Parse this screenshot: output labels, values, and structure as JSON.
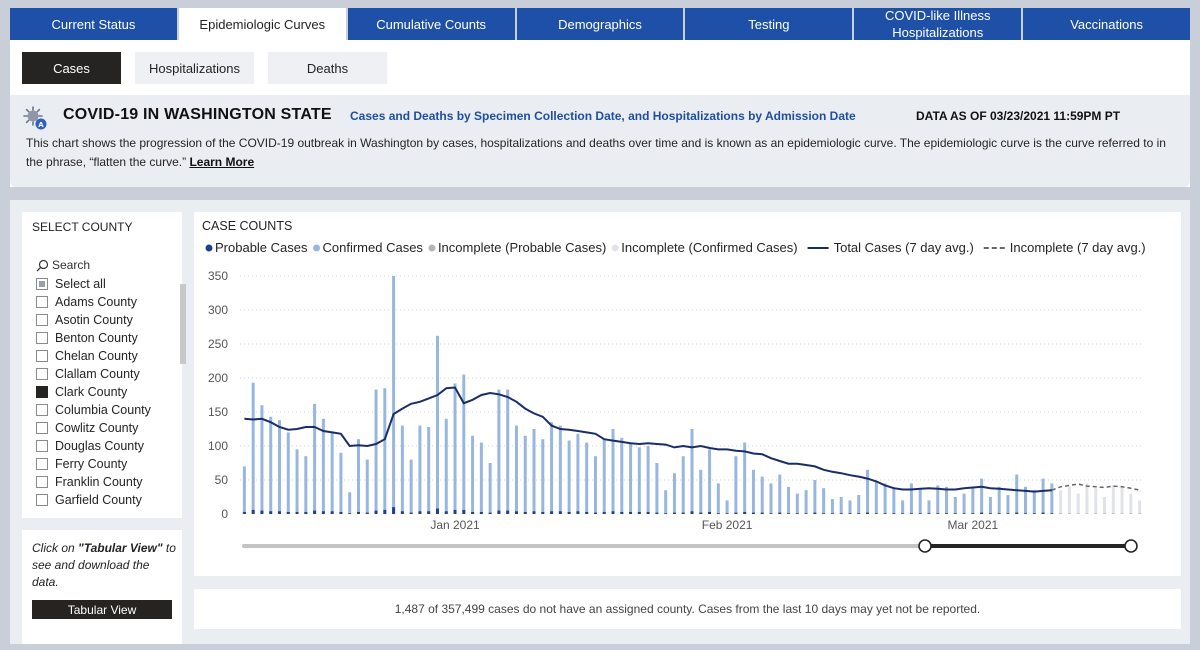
{
  "nav": {
    "tabs": [
      {
        "label": "Current Status",
        "active": false
      },
      {
        "label": "Epidemiologic Curves",
        "active": true
      },
      {
        "label": "Cumulative Counts",
        "active": false
      },
      {
        "label": "Demographics",
        "active": false
      },
      {
        "label": "Testing",
        "active": false
      },
      {
        "label": "COVID-like Illness Hospitalizations",
        "active": false
      },
      {
        "label": "Vaccinations",
        "active": false
      }
    ]
  },
  "subtabs": [
    {
      "label": "Cases",
      "active": true
    },
    {
      "label": "Hospitalizations",
      "active": false
    },
    {
      "label": "Deaths",
      "active": false
    }
  ],
  "header": {
    "icon": "virus-icon",
    "title": "COVID-19 IN WASHINGTON STATE",
    "subtitle": "Cases and Deaths by Specimen Collection Date, and Hospitalizations by Admission Date",
    "data_as_of": "DATA AS OF 03/23/2021 11:59PM PT",
    "description": "This chart shows the progression of the COVID-19 outbreak in Washington by cases, hospitalizations and deaths over time and is known as an epidemiologic curve. The epidemiologic curve is the curve referred to in the phrase, “flatten the curve.”",
    "learn_more": "Learn More"
  },
  "county_filter": {
    "title": "SELECT COUNTY",
    "search_placeholder": "Search",
    "items": [
      {
        "label": "Select all",
        "state": "partial"
      },
      {
        "label": "Adams County",
        "state": "unchecked"
      },
      {
        "label": "Asotin County",
        "state": "unchecked"
      },
      {
        "label": "Benton County",
        "state": "unchecked"
      },
      {
        "label": "Chelan County",
        "state": "unchecked"
      },
      {
        "label": "Clallam County",
        "state": "unchecked"
      },
      {
        "label": "Clark County",
        "state": "checked"
      },
      {
        "label": "Columbia County",
        "state": "unchecked"
      },
      {
        "label": "Cowlitz County",
        "state": "unchecked"
      },
      {
        "label": "Douglas County",
        "state": "unchecked"
      },
      {
        "label": "Ferry County",
        "state": "unchecked"
      },
      {
        "label": "Franklin County",
        "state": "unchecked"
      },
      {
        "label": "Garfield County",
        "state": "unchecked"
      }
    ]
  },
  "tabular": {
    "hint_prefix": "Click on ",
    "hint_bold": "\"Tabular View\"",
    "hint_suffix": " to see and download the data.",
    "button_label": "Tabular View"
  },
  "footer_note": "1,487 of 357,499 cases do not have an assigned county. Cases from the last 10 days may yet not be reported.",
  "colors": {
    "probable": "#1f3f8f",
    "confirmed": "#97b6e0",
    "incomplete_probable": "#b5b5b5",
    "incomplete_confirmed": "#e0e3e8",
    "total_line": "#1a2d66",
    "incomplete_line": "#666666"
  },
  "chart_data": {
    "type": "bar",
    "title": "CASE COUNTS",
    "ylim": [
      0,
      350
    ],
    "yticks": [
      0,
      50,
      100,
      150,
      200,
      250,
      300,
      350
    ],
    "x_tick_labels": [
      {
        "label": "Jan 2021",
        "day_index": 24
      },
      {
        "label": "Feb 2021",
        "day_index": 55
      },
      {
        "label": "Mar 2021",
        "day_index": 83
      }
    ],
    "legend": [
      {
        "label": "Probable Cases",
        "kind": "dot",
        "color": "#1f3f8f"
      },
      {
        "label": "Confirmed Cases",
        "kind": "dot",
        "color": "#97b6e0"
      },
      {
        "label": "Incomplete (Probable Cases)",
        "kind": "dot",
        "color": "#b5b5b5"
      },
      {
        "label": "Incomplete (Confirmed Cases)",
        "kind": "dot",
        "color": "#e0e3e8"
      },
      {
        "label": "Total Cases (7 day avg.)",
        "kind": "line",
        "color": "#1a2d66"
      },
      {
        "label": "Incomplete (7 day avg.)",
        "kind": "dash",
        "color": "#666666"
      }
    ],
    "confirmed_daily": [
      70,
      193,
      160,
      143,
      138,
      120,
      95,
      85,
      162,
      140,
      120,
      90,
      32,
      110,
      80,
      183,
      185,
      350,
      130,
      80,
      130,
      128,
      262,
      140,
      192,
      205,
      115,
      105,
      75,
      183,
      183,
      130,
      115,
      125,
      110,
      135,
      130,
      108,
      118,
      105,
      85,
      110,
      125,
      112,
      105,
      98,
      100,
      75,
      35,
      60,
      85,
      125,
      65,
      95,
      45,
      20,
      85,
      105,
      65,
      55,
      45,
      58,
      40,
      30,
      35,
      50,
      38,
      22,
      25,
      20,
      28,
      65,
      48,
      45,
      38,
      20,
      45,
      38,
      20,
      42,
      40,
      25,
      30,
      38,
      52,
      25,
      40,
      28,
      58,
      40,
      35,
      52,
      45
    ],
    "probable_daily": [
      3,
      6,
      5,
      4,
      4,
      3,
      3,
      3,
      5,
      4,
      4,
      3,
      1,
      3,
      2,
      5,
      6,
      10,
      4,
      2,
      4,
      4,
      8,
      4,
      6,
      6,
      3,
      3,
      2,
      5,
      5,
      4,
      3,
      4,
      3,
      4,
      4,
      3,
      4,
      3,
      2,
      3,
      4,
      3,
      3,
      3,
      3,
      2,
      1,
      2,
      2,
      4,
      2,
      3,
      1,
      1,
      2,
      3,
      2,
      2,
      1,
      2,
      1,
      1,
      1,
      2,
      1,
      1,
      1,
      1,
      1,
      2,
      1,
      1,
      1,
      1,
      1,
      1,
      1,
      1,
      1,
      1,
      1,
      1,
      2,
      1,
      1,
      1,
      2,
      1,
      1,
      2,
      1
    ],
    "incomplete_confirmed_daily": [
      35,
      40,
      30,
      45,
      38,
      25,
      42,
      40,
      30,
      20
    ],
    "incomplete_probable_daily": [
      1,
      1,
      1,
      1,
      1,
      1,
      1,
      1,
      1,
      1
    ],
    "total_7day_avg": [
      140,
      139,
      140,
      135,
      128,
      124,
      125,
      128,
      128,
      122,
      120,
      118,
      100,
      101,
      100,
      103,
      110,
      147,
      155,
      162,
      165,
      170,
      175,
      185,
      186,
      163,
      168,
      175,
      178,
      176,
      172,
      165,
      155,
      148,
      143,
      130,
      125,
      124,
      122,
      120,
      118,
      110,
      108,
      106,
      104,
      103,
      104,
      103,
      102,
      98,
      100,
      98,
      100,
      97,
      95,
      95,
      93,
      92,
      89,
      88,
      82,
      78,
      74,
      74,
      72,
      70,
      65,
      62,
      60,
      57,
      55,
      52,
      48,
      42,
      38,
      36,
      36,
      37,
      38,
      37,
      36,
      36,
      38,
      39,
      40,
      38,
      37,
      36,
      35,
      34,
      33,
      34,
      35
    ],
    "incomplete_7day_avg": [
      40,
      42,
      44,
      41,
      40,
      39,
      41,
      40,
      38,
      35
    ]
  }
}
